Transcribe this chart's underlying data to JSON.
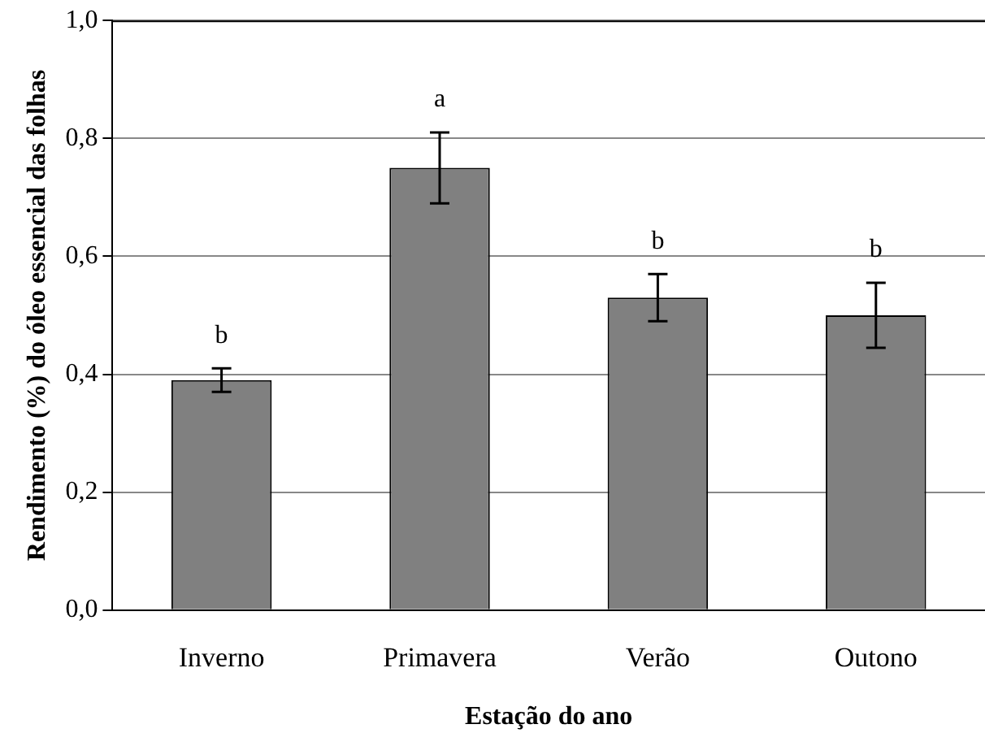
{
  "chart_data": {
    "type": "bar",
    "xlabel": "Estação do ano",
    "ylabel": "Rendimento (%) do óleo essencial das folhas",
    "categories": [
      "Inverno",
      "Primavera",
      "Verão",
      "Outono"
    ],
    "values": [
      0.39,
      0.75,
      0.53,
      0.5
    ],
    "errors": [
      0.02,
      0.06,
      0.04,
      0.055
    ],
    "color": "#808080",
    "ylim": [
      0,
      1
    ],
    "yticks": [
      {
        "value": 0,
        "label": "0,0"
      },
      {
        "value": 0.2,
        "label": "0,2"
      },
      {
        "value": 0.4,
        "label": "0,4"
      },
      {
        "value": 0.6,
        "label": "0,6"
      },
      {
        "value": 0.8,
        "label": "0,8"
      },
      {
        "value": 1,
        "label": "1,0"
      }
    ],
    "grid": "y",
    "legend": false,
    "annotations": [
      "b",
      "a",
      "b",
      "b"
    ]
  }
}
